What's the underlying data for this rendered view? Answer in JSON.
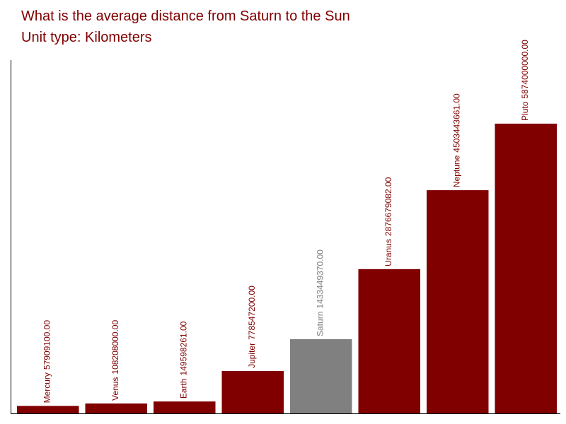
{
  "chart_data": {
    "type": "bar",
    "title": "What is the average distance from Saturn to the Sun",
    "subtitle": "Unit type: Kilometers",
    "title_color": "#800000",
    "categories": [
      "Mercury",
      "Venus",
      "Earth",
      "Jupiter",
      "Saturn",
      "Uranus",
      "Neptune",
      "Pluto"
    ],
    "values": [
      57909100,
      108208000,
      149598261,
      778547200,
      1433449370,
      2876679082,
      4503443661,
      5874000000
    ],
    "value_labels": [
      "57909100.00",
      "108208000.00",
      "149598261.00",
      "778547200.00",
      "1433449370.00",
      "2876679082.00",
      "4503443661.00",
      "5874000000.00"
    ],
    "colors": [
      "#800000",
      "#800000",
      "#800000",
      "#800000",
      "#808080",
      "#800000",
      "#800000",
      "#800000"
    ],
    "ylim": [
      -96000000,
      7184000000
    ]
  }
}
